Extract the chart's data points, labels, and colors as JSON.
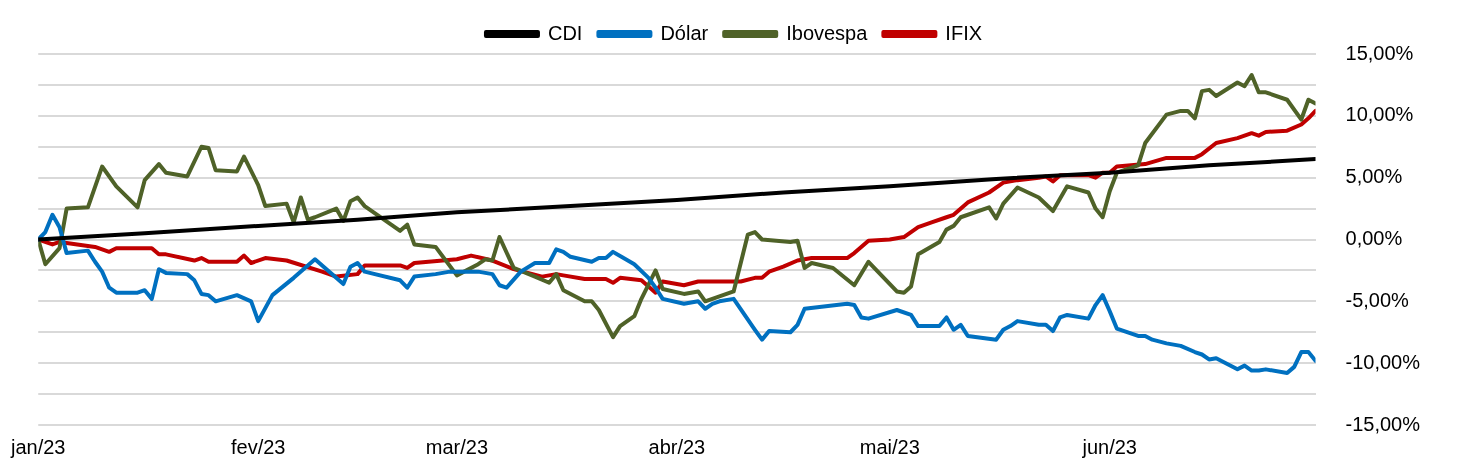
{
  "chart_data": {
    "type": "line",
    "xlim": [
      "2023-01-01",
      "2023-06-30"
    ],
    "xticks": [
      {
        "value": "2023-01-01",
        "label": "jan/23"
      },
      {
        "value": "2023-02-01",
        "label": "fev/23"
      },
      {
        "value": "2023-03-01",
        "label": "mar/23"
      },
      {
        "value": "2023-04-01",
        "label": "abr/23"
      },
      {
        "value": "2023-05-01",
        "label": "mai/23"
      },
      {
        "value": "2023-06-01",
        "label": "jun/23"
      }
    ],
    "ylim": [
      -15,
      15
    ],
    "yticks": [
      {
        "value": -15,
        "label": "-15,00%"
      },
      {
        "value": -12.5,
        "label": null
      },
      {
        "value": -10,
        "label": "-10,00%"
      },
      {
        "value": -7.5,
        "label": null
      },
      {
        "value": -5,
        "label": "-5,00%"
      },
      {
        "value": -2.5,
        "label": null
      },
      {
        "value": 0,
        "label": "0,00%"
      },
      {
        "value": 2.5,
        "label": null
      },
      {
        "value": 5,
        "label": "5,00%"
      },
      {
        "value": 7.5,
        "label": null
      },
      {
        "value": 10,
        "label": "10,00%"
      },
      {
        "value": 12.5,
        "label": null
      },
      {
        "value": 15,
        "label": "15,00%"
      }
    ],
    "grid": "y",
    "legend": "top",
    "series": [
      {
        "name": "CDI",
        "color": "#000000",
        "x": [
          "2023-01-01",
          "2023-01-16",
          "2023-02-01",
          "2023-02-15",
          "2023-03-01",
          "2023-03-17",
          "2023-04-01",
          "2023-04-16",
          "2023-05-01",
          "2023-05-16",
          "2023-06-01",
          "2023-06-15",
          "2023-06-30"
        ],
        "values": [
          0,
          0.5,
          1.1,
          1.6,
          2.2,
          2.7,
          3.2,
          3.8,
          4.3,
          4.9,
          5.4,
          6.0,
          6.5
        ]
      },
      {
        "name": "Dólar",
        "color": "#0070c0",
        "x": [
          "2023-01-01",
          "2023-01-02",
          "2023-01-03",
          "2023-01-04",
          "2023-01-05",
          "2023-01-08",
          "2023-01-09",
          "2023-01-10",
          "2023-01-11",
          "2023-01-12",
          "2023-01-15",
          "2023-01-16",
          "2023-01-17",
          "2023-01-18",
          "2023-01-19",
          "2023-01-22",
          "2023-01-23",
          "2023-01-24",
          "2023-01-25",
          "2023-01-26",
          "2023-01-29",
          "2023-01-31",
          "2023-02-01",
          "2023-02-03",
          "2023-02-06",
          "2023-02-09",
          "2023-02-13",
          "2023-02-14",
          "2023-02-15",
          "2023-02-16",
          "2023-02-21",
          "2023-02-22",
          "2023-02-23",
          "2023-02-26",
          "2023-02-28",
          "2023-03-04",
          "2023-03-06",
          "2023-03-07",
          "2023-03-08",
          "2023-03-10",
          "2023-03-12",
          "2023-03-14",
          "2023-03-15",
          "2023-03-16",
          "2023-03-17",
          "2023-03-20",
          "2023-03-21",
          "2023-03-22",
          "2023-03-23",
          "2023-03-26",
          "2023-03-28",
          "2023-03-29",
          "2023-03-30",
          "2023-04-02",
          "2023-04-04",
          "2023-04-05",
          "2023-04-06",
          "2023-04-07",
          "2023-04-09",
          "2023-04-12",
          "2023-04-13",
          "2023-04-14",
          "2023-04-17",
          "2023-04-18",
          "2023-04-19",
          "2023-04-25",
          "2023-04-26",
          "2023-04-27",
          "2023-04-28",
          "2023-05-02",
          "2023-05-04",
          "2023-05-05",
          "2023-05-08",
          "2023-05-09",
          "2023-05-10",
          "2023-05-11",
          "2023-05-12",
          "2023-05-16",
          "2023-05-17",
          "2023-05-18",
          "2023-05-19",
          "2023-05-22",
          "2023-05-23",
          "2023-05-24",
          "2023-05-25",
          "2023-05-26",
          "2023-05-29",
          "2023-05-30",
          "2023-05-31",
          "2023-06-01",
          "2023-06-02",
          "2023-06-05",
          "2023-06-06",
          "2023-06-07",
          "2023-06-09",
          "2023-06-11",
          "2023-06-13",
          "2023-06-14",
          "2023-06-15",
          "2023-06-16",
          "2023-06-19",
          "2023-06-20",
          "2023-06-21",
          "2023-06-22",
          "2023-06-23",
          "2023-06-26",
          "2023-06-27",
          "2023-06-28",
          "2023-06-29",
          "2023-06-30"
        ],
        "values": [
          0,
          0.6,
          2.0,
          1.0,
          -1.1,
          -0.9,
          -1.8,
          -2.6,
          -3.9,
          -4.3,
          -4.3,
          -4.1,
          -4.8,
          -2.4,
          -2.7,
          -2.8,
          -3.3,
          -4.4,
          -4.5,
          -5.0,
          -4.5,
          -5.0,
          -6.6,
          -4.5,
          -3.1,
          -1.6,
          -3.6,
          -2.2,
          -1.9,
          -2.6,
          -3.3,
          -3.9,
          -3.0,
          -2.8,
          -2.6,
          -2.6,
          -2.8,
          -3.7,
          -3.9,
          -2.6,
          -1.9,
          -1.9,
          -0.8,
          -1.0,
          -1.4,
          -1.8,
          -1.5,
          -1.5,
          -1.0,
          -2.0,
          -3.1,
          -3.9,
          -4.8,
          -5.2,
          -5.0,
          -5.6,
          -5.2,
          -5.0,
          -4.8,
          -7.3,
          -8.1,
          -7.4,
          -7.5,
          -6.9,
          -5.6,
          -5.2,
          -5.3,
          -6.3,
          -6.4,
          -5.7,
          -6.1,
          -7.0,
          -7.0,
          -6.3,
          -7.3,
          -6.9,
          -7.8,
          -8.1,
          -7.3,
          -7.0,
          -6.6,
          -6.9,
          -6.9,
          -7.4,
          -6.3,
          -6.1,
          -6.4,
          -5.3,
          -4.5,
          -5.8,
          -7.2,
          -7.8,
          -7.8,
          -8.1,
          -8.4,
          -8.6,
          -9.1,
          -9.3,
          -9.7,
          -9.6,
          -10.5,
          -10.2,
          -10.6,
          -10.6,
          -10.5,
          -10.8,
          -10.3,
          -9.1,
          -9.1,
          -9.8
        ]
      },
      {
        "name": "Ibovespa",
        "color": "#4f6228",
        "x": [
          "2023-01-01",
          "2023-01-02",
          "2023-01-04",
          "2023-01-05",
          "2023-01-08",
          "2023-01-10",
          "2023-01-12",
          "2023-01-15",
          "2023-01-16",
          "2023-01-18",
          "2023-01-19",
          "2023-01-22",
          "2023-01-24",
          "2023-01-25",
          "2023-01-26",
          "2023-01-29",
          "2023-01-30",
          "2023-02-01",
          "2023-02-02",
          "2023-02-05",
          "2023-02-06",
          "2023-02-07",
          "2023-02-08",
          "2023-02-09",
          "2023-02-12",
          "2023-02-13",
          "2023-02-14",
          "2023-02-15",
          "2023-02-16",
          "2023-02-21",
          "2023-02-22",
          "2023-02-23",
          "2023-02-26",
          "2023-03-01",
          "2023-03-04",
          "2023-03-05",
          "2023-03-06",
          "2023-03-07",
          "2023-03-09",
          "2023-03-12",
          "2023-03-14",
          "2023-03-15",
          "2023-03-16",
          "2023-03-19",
          "2023-03-20",
          "2023-03-21",
          "2023-03-23",
          "2023-03-24",
          "2023-03-26",
          "2023-03-27",
          "2023-03-29",
          "2023-03-30",
          "2023-04-02",
          "2023-04-04",
          "2023-04-05",
          "2023-04-09",
          "2023-04-11",
          "2023-04-12",
          "2023-04-13",
          "2023-04-17",
          "2023-04-18",
          "2023-04-19",
          "2023-04-20",
          "2023-04-23",
          "2023-04-26",
          "2023-04-28",
          "2023-05-02",
          "2023-05-03",
          "2023-05-04",
          "2023-05-05",
          "2023-05-08",
          "2023-05-09",
          "2023-05-10",
          "2023-05-11",
          "2023-05-15",
          "2023-05-16",
          "2023-05-17",
          "2023-05-19",
          "2023-05-22",
          "2023-05-24",
          "2023-05-26",
          "2023-05-29",
          "2023-05-30",
          "2023-05-31",
          "2023-06-01",
          "2023-06-02",
          "2023-06-05",
          "2023-06-06",
          "2023-06-09",
          "2023-06-11",
          "2023-06-12",
          "2023-06-13",
          "2023-06-14",
          "2023-06-15",
          "2023-06-16",
          "2023-06-19",
          "2023-06-20",
          "2023-06-21",
          "2023-06-22",
          "2023-06-23",
          "2023-06-26",
          "2023-06-28",
          "2023-06-29",
          "2023-06-30"
        ],
        "values": [
          0,
          -2.0,
          -0.7,
          2.5,
          2.6,
          5.9,
          4.3,
          2.6,
          4.8,
          6.1,
          5.4,
          5.1,
          7.5,
          7.4,
          5.6,
          5.5,
          6.7,
          4.4,
          2.7,
          2.9,
          1.4,
          3.4,
          1.6,
          1.8,
          2.5,
          1.5,
          3.1,
          3.4,
          2.7,
          0.7,
          1.2,
          -0.4,
          -0.6,
          -2.9,
          -2.0,
          -1.6,
          -1.7,
          0.2,
          -2.3,
          -3.0,
          -3.5,
          -2.8,
          -4.1,
          -5.0,
          -5.0,
          -5.7,
          -7.9,
          -7.0,
          -6.2,
          -4.8,
          -2.5,
          -4.0,
          -4.4,
          -4.2,
          -5.0,
          -4.2,
          0.4,
          0.6,
          0.0,
          -0.2,
          -0.1,
          -2.3,
          -1.9,
          -2.3,
          -3.7,
          -1.8,
          -4.2,
          -4.3,
          -3.8,
          -1.2,
          -0.2,
          0.8,
          1.1,
          1.8,
          2.6,
          1.7,
          2.9,
          4.2,
          3.4,
          2.3,
          4.3,
          3.8,
          2.5,
          1.8,
          3.9,
          5.4,
          6.0,
          7.8,
          10.1,
          10.4,
          10.4,
          9.8,
          12.0,
          12.1,
          11.6,
          12.7,
          12.4,
          13.3,
          11.9,
          11.9,
          11.3,
          9.7,
          11.3,
          11.0
        ]
      },
      {
        "name": "IFIX",
        "color": "#c00000",
        "x": [
          "2023-01-01",
          "2023-01-03",
          "2023-01-04",
          "2023-01-09",
          "2023-01-11",
          "2023-01-12",
          "2023-01-15",
          "2023-01-17",
          "2023-01-18",
          "2023-01-19",
          "2023-01-23",
          "2023-01-24",
          "2023-01-25",
          "2023-01-29",
          "2023-01-30",
          "2023-01-31",
          "2023-02-02",
          "2023-02-05",
          "2023-02-10",
          "2023-02-12",
          "2023-02-15",
          "2023-02-16",
          "2023-02-21",
          "2023-02-22",
          "2023-02-23",
          "2023-03-01",
          "2023-03-03",
          "2023-03-06",
          "2023-03-09",
          "2023-03-13",
          "2023-03-15",
          "2023-03-16",
          "2023-03-19",
          "2023-03-22",
          "2023-03-23",
          "2023-03-24",
          "2023-03-27",
          "2023-03-29",
          "2023-03-30",
          "2023-04-02",
          "2023-04-04",
          "2023-04-10",
          "2023-04-12",
          "2023-04-13",
          "2023-04-14",
          "2023-04-16",
          "2023-04-18",
          "2023-04-20",
          "2023-04-24",
          "2023-04-25",
          "2023-04-26",
          "2023-04-28",
          "2023-05-01",
          "2023-05-03",
          "2023-05-05",
          "2023-05-07",
          "2023-05-09",
          "2023-05-10",
          "2023-05-12",
          "2023-05-15",
          "2023-05-17",
          "2023-05-19",
          "2023-05-22",
          "2023-05-23",
          "2023-05-24",
          "2023-05-25",
          "2023-05-29",
          "2023-05-30",
          "2023-05-31",
          "2023-06-01",
          "2023-06-02",
          "2023-06-06",
          "2023-06-09",
          "2023-06-13",
          "2023-06-14",
          "2023-06-16",
          "2023-06-19",
          "2023-06-21",
          "2023-06-22",
          "2023-06-23",
          "2023-06-26",
          "2023-06-28",
          "2023-06-29",
          "2023-06-30"
        ],
        "values": [
          0,
          -0.4,
          -0.2,
          -0.6,
          -1.0,
          -0.7,
          -0.7,
          -0.7,
          -1.2,
          -1.2,
          -1.7,
          -1.5,
          -1.8,
          -1.8,
          -1.3,
          -1.9,
          -1.5,
          -1.7,
          -2.6,
          -3.0,
          -2.8,
          -2.1,
          -2.1,
          -2.3,
          -1.9,
          -1.6,
          -1.3,
          -1.7,
          -2.4,
          -3.0,
          -2.8,
          -2.9,
          -3.2,
          -3.2,
          -3.5,
          -3.1,
          -3.3,
          -4.3,
          -3.4,
          -3.7,
          -3.4,
          -3.4,
          -3.1,
          -3.1,
          -2.6,
          -2.2,
          -1.7,
          -1.5,
          -1.5,
          -1.5,
          -1.1,
          -0.1,
          0.0,
          0.2,
          1.0,
          1.4,
          1.8,
          2.0,
          3.0,
          3.8,
          4.6,
          4.8,
          5.0,
          5.1,
          4.7,
          5.2,
          5.2,
          5.0,
          5.4,
          5.4,
          5.9,
          6.1,
          6.6,
          6.6,
          6.9,
          7.8,
          8.2,
          8.6,
          8.4,
          8.7,
          8.8,
          9.3,
          9.8,
          10.4
        ]
      }
    ]
  }
}
